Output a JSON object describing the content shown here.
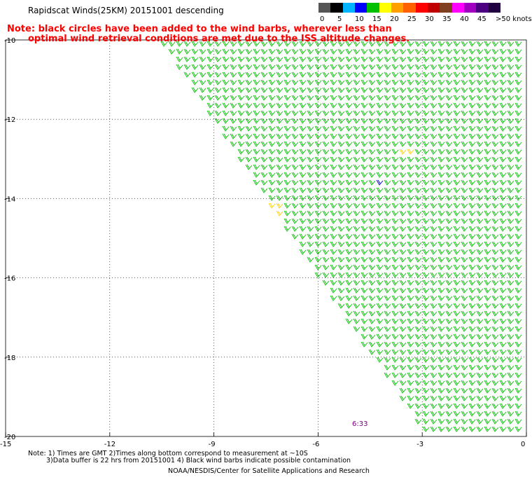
{
  "header": {
    "title": "Rapidscat Winds(25KM) 20151001 descending",
    "note_line1": "Note: black circles have been added to the wind barbs, wherever less than",
    "note_line2": "optimal wind retrieval conditions are met due to the ISS altitude changes."
  },
  "scale": {
    "unit": ">50 knots",
    "labels": [
      "0",
      "5",
      "10",
      "15",
      "20",
      "25",
      "30",
      "35",
      "40",
      "45"
    ],
    "colors": [
      "#555555",
      "#000000",
      "#00b4ff",
      "#0000ff",
      "#00c000",
      "#ffff00",
      "#ffa000",
      "#ff6000",
      "#ff0000",
      "#c00000",
      "#804020",
      "#ff00ff",
      "#a000c0",
      "#4b0082",
      "#200040"
    ]
  },
  "map": {
    "y_ticks": [
      "-10",
      "-12",
      "-14",
      "-16",
      "-18",
      "-20"
    ],
    "x_ticks": [
      "-15",
      "-12",
      "-9",
      "-6",
      "-3",
      "0"
    ],
    "lat_range": [
      -20,
      -10
    ],
    "lon_range": [
      -15,
      0
    ],
    "pass_time": "6:33",
    "barb_color": "#00c000",
    "accent_barbs": {
      "yellow": "#ffd000",
      "blue": "#0000c0"
    }
  },
  "footer": {
    "line1": "Note: 1) Times are GMT 2)Times along bottom correspond to measurement at ~10S",
    "line2": "3)Data buffer is 22 hrs from 20151001 4) Black wind barbs indicate possible contamination",
    "line3": "NOAA/NESDIS/Center for Satellite Applications and Research"
  }
}
